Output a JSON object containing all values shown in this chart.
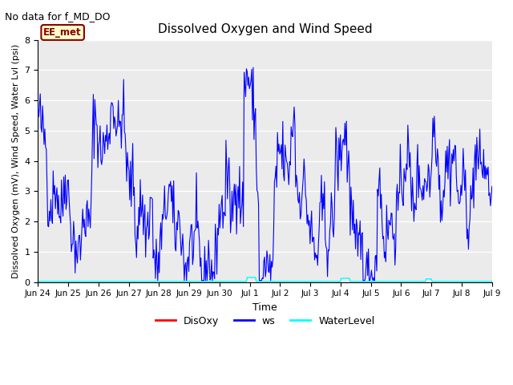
{
  "title": "Dissolved Oxygen and Wind Speed",
  "figtext": "No data for f_MD_DO",
  "ylabel": "Dissolved Oxygen (mV), Wind Speed, Water Lvl (psi)",
  "xlabel": "Time",
  "ylim": [
    0.0,
    8.0
  ],
  "yticks": [
    0.0,
    1.0,
    2.0,
    3.0,
    4.0,
    5.0,
    6.0,
    7.0,
    8.0
  ],
  "xtick_labels": [
    "Jun 24",
    "Jun 25",
    "Jun 26",
    "Jun 27",
    "Jun 28",
    "Jun 29",
    "Jun 30",
    "Jul 1",
    "Jul 2",
    "Jul 3",
    "Jul 4",
    "Jul 5",
    "Jul 6",
    "Jul 7",
    "Jul 8",
    "Jul 9"
  ],
  "legend_label_box": "EE_met",
  "legend_entries": [
    "DisOxy",
    "ws",
    "WaterLevel"
  ],
  "legend_colors": [
    "red",
    "blue",
    "cyan"
  ],
  "plot_bg_color": "#ebebeb",
  "fig_bg_color": "#ffffff",
  "ws_color": "blue",
  "disoxy_color": "red",
  "waterlevel_color": "cyan",
  "ws_linewidth": 0.8,
  "wl_linewidth": 1.0,
  "grid_color": "#ffffff",
  "grid_lw": 1.0,
  "figsize": [
    6.4,
    4.8
  ],
  "dpi": 100,
  "seed": 42,
  "n_points": 600
}
